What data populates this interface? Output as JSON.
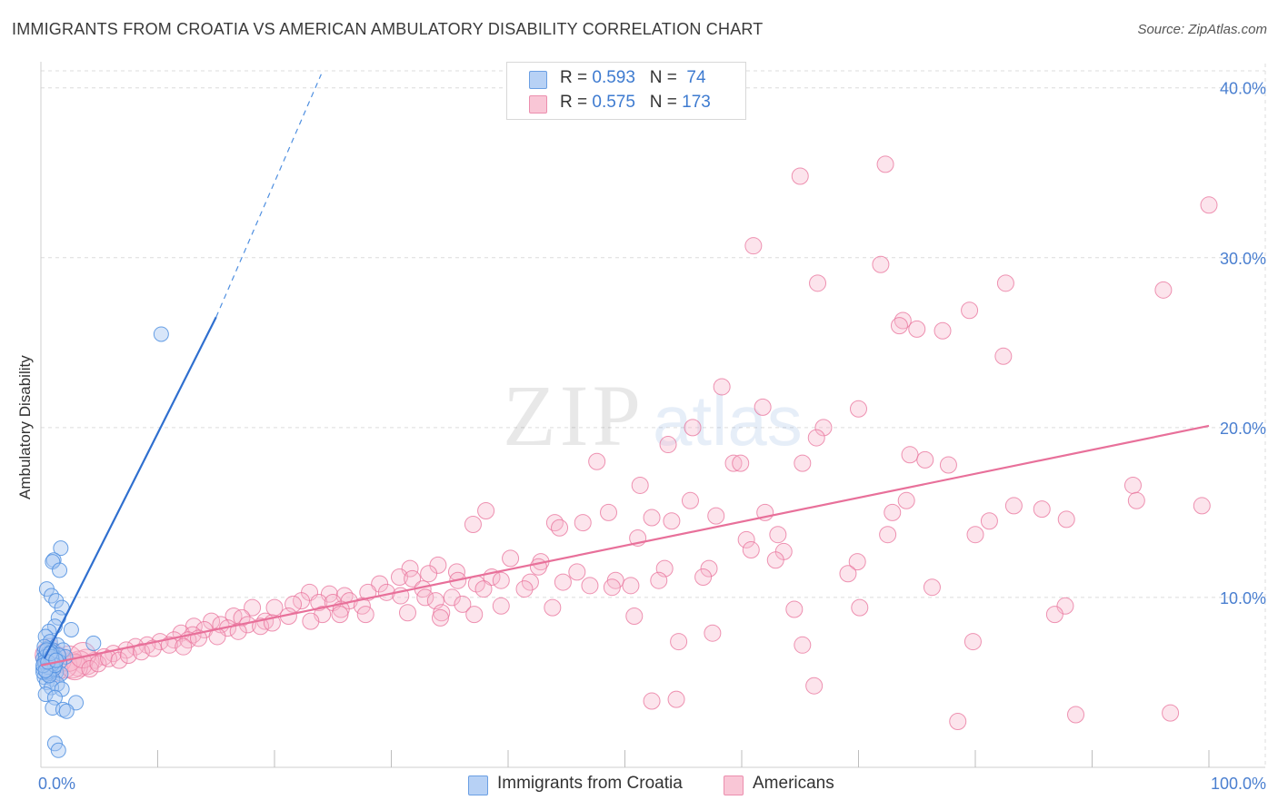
{
  "title": "IMMIGRANTS FROM CROATIA VS AMERICAN AMBULATORY DISABILITY CORRELATION CHART",
  "source": "Source: ZipAtlas.com",
  "watermark": {
    "zip": "ZIP",
    "atlas": "atlas"
  },
  "legend": {
    "series1": {
      "r_label": "R = ",
      "r_value": "0.593",
      "n_label": "N = ",
      "n_value": " 74"
    },
    "series2": {
      "r_label": "R = ",
      "r_value": "0.575",
      "n_label": "N = ",
      "n_value": "173"
    }
  },
  "bottom_legend": {
    "series1": "Immigrants from Croatia",
    "series2": "Americans"
  },
  "colors": {
    "blue": "#4f8fe0",
    "blue_fill": "#a9c8f2",
    "pink": "#e8709a",
    "pink_fill": "#f7b8cc",
    "tick": "#4a7fd0",
    "grid": "#dddddd"
  },
  "chart_data": {
    "type": "scatter",
    "title": "IMMIGRANTS FROM CROATIA VS AMERICAN AMBULATORY DISABILITY CORRELATION CHART",
    "xlabel": "",
    "ylabel": "Ambulatory Disability",
    "xlim": [
      0,
      100
    ],
    "ylim": [
      0,
      41
    ],
    "x_tick_labels": [
      "0.0%",
      "100.0%"
    ],
    "y_ticks": [
      10,
      20,
      30,
      40
    ],
    "y_tick_labels": [
      "10.0%",
      "20.0%",
      "30.0%",
      "40.0%"
    ],
    "grid": true,
    "legend_position": "top-center",
    "series": [
      {
        "name": "Immigrants from Croatia",
        "color": "#4f8fe0",
        "R": 0.593,
        "N": 74,
        "trend": {
          "x": [
            0.3,
            15
          ],
          "y": [
            6.4,
            26.5
          ],
          "dashed_to": [
            24.0,
            40.8
          ]
        },
        "points": [
          [
            10.3,
            25.5
          ],
          [
            1.7,
            12.9
          ],
          [
            1.1,
            12.2
          ],
          [
            1.0,
            12.1
          ],
          [
            1.6,
            11.6
          ],
          [
            0.5,
            10.5
          ],
          [
            0.9,
            10.1
          ],
          [
            1.3,
            9.8
          ],
          [
            1.8,
            9.4
          ],
          [
            1.5,
            8.8
          ],
          [
            1.2,
            8.3
          ],
          [
            0.7,
            8.0
          ],
          [
            2.6,
            8.1
          ],
          [
            0.4,
            7.7
          ],
          [
            0.8,
            7.4
          ],
          [
            1.4,
            7.2
          ],
          [
            4.5,
            7.3
          ],
          [
            0.6,
            7.0
          ],
          [
            1.0,
            6.9
          ],
          [
            1.9,
            6.9
          ],
          [
            0.3,
            6.8
          ],
          [
            0.7,
            6.6
          ],
          [
            1.2,
            6.5
          ],
          [
            2.1,
            6.5
          ],
          [
            0.5,
            6.3
          ],
          [
            0.9,
            6.2
          ],
          [
            1.6,
            6.2
          ],
          [
            0.4,
            6.0
          ],
          [
            1.1,
            5.9
          ],
          [
            0.2,
            5.8
          ],
          [
            0.8,
            5.7
          ],
          [
            1.3,
            5.6
          ],
          [
            0.6,
            5.5
          ],
          [
            1.7,
            5.5
          ],
          [
            0.3,
            5.3
          ],
          [
            1.0,
            5.2
          ],
          [
            0.5,
            5.0
          ],
          [
            1.4,
            4.9
          ],
          [
            0.9,
            4.7
          ],
          [
            1.8,
            4.6
          ],
          [
            0.4,
            4.3
          ],
          [
            1.2,
            4.1
          ],
          [
            3.0,
            3.8
          ],
          [
            1.0,
            3.5
          ],
          [
            1.9,
            3.4
          ],
          [
            2.2,
            3.3
          ],
          [
            1.2,
            1.4
          ],
          [
            1.5,
            1.0
          ],
          [
            0.2,
            6.4
          ],
          [
            0.4,
            6.1
          ],
          [
            0.6,
            6.7
          ],
          [
            0.8,
            5.9
          ],
          [
            1.0,
            6.3
          ],
          [
            0.3,
            7.1
          ],
          [
            0.5,
            5.6
          ],
          [
            0.7,
            6.0
          ],
          [
            0.9,
            6.8
          ],
          [
            1.1,
            5.8
          ],
          [
            0.2,
            5.6
          ],
          [
            0.4,
            6.5
          ],
          [
            0.6,
            5.9
          ],
          [
            0.8,
            6.4
          ],
          [
            1.0,
            6.1
          ],
          [
            1.5,
            6.6
          ],
          [
            0.3,
            6.2
          ],
          [
            0.5,
            6.9
          ],
          [
            0.7,
            5.4
          ],
          [
            0.9,
            6.5
          ],
          [
            1.2,
            6.0
          ],
          [
            0.2,
            6.0
          ],
          [
            0.4,
            5.7
          ],
          [
            0.6,
            6.2
          ],
          [
            0.8,
            6.7
          ],
          [
            1.3,
            6.3
          ]
        ]
      },
      {
        "name": "Americans",
        "color": "#e8709a",
        "R": 0.575,
        "N": 173,
        "trend": {
          "x": [
            0,
            100
          ],
          "y": [
            6.0,
            20.1
          ]
        },
        "points": [
          [
            65.0,
            34.8
          ],
          [
            72.3,
            35.5
          ],
          [
            100.0,
            33.1
          ],
          [
            61.0,
            30.7
          ],
          [
            71.9,
            29.6
          ],
          [
            66.5,
            28.5
          ],
          [
            82.6,
            28.5
          ],
          [
            96.1,
            28.1
          ],
          [
            79.5,
            26.9
          ],
          [
            73.8,
            26.3
          ],
          [
            73.5,
            26.0
          ],
          [
            75.0,
            25.8
          ],
          [
            77.2,
            25.7
          ],
          [
            82.4,
            24.2
          ],
          [
            58.3,
            22.4
          ],
          [
            61.8,
            21.2
          ],
          [
            70.0,
            21.1
          ],
          [
            55.8,
            20.0
          ],
          [
            67.0,
            20.0
          ],
          [
            66.4,
            19.4
          ],
          [
            53.7,
            19.0
          ],
          [
            74.4,
            18.4
          ],
          [
            75.7,
            18.1
          ],
          [
            47.6,
            18.0
          ],
          [
            59.3,
            17.9
          ],
          [
            59.9,
            17.9
          ],
          [
            65.2,
            17.9
          ],
          [
            77.7,
            17.8
          ],
          [
            51.3,
            16.6
          ],
          [
            93.5,
            16.6
          ],
          [
            55.6,
            15.7
          ],
          [
            74.1,
            15.7
          ],
          [
            93.8,
            15.7
          ],
          [
            38.1,
            15.1
          ],
          [
            48.6,
            15.0
          ],
          [
            62.0,
            15.0
          ],
          [
            83.3,
            15.4
          ],
          [
            85.7,
            15.2
          ],
          [
            99.4,
            15.4
          ],
          [
            52.3,
            14.7
          ],
          [
            54.0,
            14.5
          ],
          [
            57.8,
            14.8
          ],
          [
            72.9,
            15.0
          ],
          [
            81.2,
            14.5
          ],
          [
            87.8,
            14.6
          ],
          [
            37.0,
            14.3
          ],
          [
            44.0,
            14.4
          ],
          [
            46.4,
            14.4
          ],
          [
            44.4,
            14.1
          ],
          [
            63.1,
            13.7
          ],
          [
            80.0,
            13.7
          ],
          [
            72.5,
            13.7
          ],
          [
            51.1,
            13.5
          ],
          [
            60.4,
            13.4
          ],
          [
            60.8,
            12.8
          ],
          [
            63.6,
            12.7
          ],
          [
            40.2,
            12.3
          ],
          [
            42.8,
            12.1
          ],
          [
            62.9,
            12.2
          ],
          [
            69.9,
            12.1
          ],
          [
            34.0,
            11.9
          ],
          [
            31.6,
            11.7
          ],
          [
            33.2,
            11.4
          ],
          [
            35.6,
            11.5
          ],
          [
            38.6,
            11.2
          ],
          [
            42.6,
            11.8
          ],
          [
            45.9,
            11.5
          ],
          [
            53.4,
            11.7
          ],
          [
            57.2,
            11.7
          ],
          [
            69.1,
            11.4
          ],
          [
            56.7,
            11.2
          ],
          [
            30.7,
            11.2
          ],
          [
            31.8,
            11.1
          ],
          [
            35.7,
            11.0
          ],
          [
            37.3,
            10.8
          ],
          [
            39.4,
            11.0
          ],
          [
            41.9,
            10.9
          ],
          [
            44.7,
            10.9
          ],
          [
            49.2,
            11.0
          ],
          [
            52.9,
            11.0
          ],
          [
            76.3,
            10.6
          ],
          [
            29.0,
            10.8
          ],
          [
            32.7,
            10.5
          ],
          [
            37.9,
            10.5
          ],
          [
            41.4,
            10.5
          ],
          [
            47.0,
            10.7
          ],
          [
            48.9,
            10.6
          ],
          [
            50.5,
            10.7
          ],
          [
            23.0,
            10.3
          ],
          [
            24.7,
            10.2
          ],
          [
            26.0,
            10.1
          ],
          [
            28.0,
            10.3
          ],
          [
            29.6,
            10.3
          ],
          [
            30.8,
            10.1
          ],
          [
            32.9,
            10.0
          ],
          [
            35.2,
            10.0
          ],
          [
            22.3,
            9.8
          ],
          [
            23.8,
            9.7
          ],
          [
            26.4,
            9.8
          ],
          [
            27.5,
            9.5
          ],
          [
            33.8,
            9.8
          ],
          [
            36.1,
            9.6
          ],
          [
            39.4,
            9.5
          ],
          [
            18.1,
            9.4
          ],
          [
            20.0,
            9.4
          ],
          [
            21.6,
            9.6
          ],
          [
            25.0,
            9.7
          ],
          [
            25.7,
            9.3
          ],
          [
            24.1,
            9.0
          ],
          [
            27.8,
            9.0
          ],
          [
            31.4,
            9.1
          ],
          [
            34.3,
            9.1
          ],
          [
            43.8,
            9.4
          ],
          [
            64.5,
            9.3
          ],
          [
            70.1,
            9.4
          ],
          [
            87.7,
            9.5
          ],
          [
            86.8,
            9.0
          ],
          [
            16.5,
            8.9
          ],
          [
            17.2,
            8.8
          ],
          [
            19.2,
            8.6
          ],
          [
            21.2,
            8.9
          ],
          [
            14.6,
            8.6
          ],
          [
            15.4,
            8.4
          ],
          [
            16.0,
            8.2
          ],
          [
            17.7,
            8.4
          ],
          [
            18.8,
            8.3
          ],
          [
            19.8,
            8.5
          ],
          [
            23.1,
            8.6
          ],
          [
            25.6,
            9.0
          ],
          [
            34.2,
            8.8
          ],
          [
            37.1,
            9.0
          ],
          [
            50.8,
            8.9
          ],
          [
            13.1,
            8.3
          ],
          [
            14.0,
            8.1
          ],
          [
            12.0,
            7.9
          ],
          [
            13.0,
            7.8
          ],
          [
            11.4,
            7.5
          ],
          [
            12.6,
            7.5
          ],
          [
            10.2,
            7.4
          ],
          [
            9.1,
            7.2
          ],
          [
            8.1,
            7.1
          ],
          [
            7.3,
            6.9
          ],
          [
            6.2,
            6.7
          ],
          [
            5.4,
            6.5
          ],
          [
            4.6,
            6.3
          ],
          [
            3.9,
            6.2
          ],
          [
            3.3,
            6.1
          ],
          [
            2.7,
            6.0
          ],
          [
            2.0,
            6.0
          ],
          [
            1.5,
            6.3
          ],
          [
            1.0,
            6.5
          ],
          [
            0.6,
            6.6
          ],
          [
            0.8,
            7.1
          ],
          [
            1.2,
            5.8
          ],
          [
            2.4,
            6.4
          ],
          [
            2.9,
            5.9
          ],
          [
            3.6,
            6.6
          ],
          [
            4.2,
            5.8
          ],
          [
            4.9,
            6.1
          ],
          [
            5.8,
            6.4
          ],
          [
            6.7,
            6.3
          ],
          [
            7.5,
            6.6
          ],
          [
            8.6,
            6.8
          ],
          [
            9.6,
            7.0
          ],
          [
            11.0,
            7.2
          ],
          [
            12.2,
            7.1
          ],
          [
            13.5,
            7.6
          ],
          [
            15.1,
            7.7
          ],
          [
            16.9,
            8.0
          ],
          [
            54.6,
            7.4
          ],
          [
            57.5,
            7.9
          ],
          [
            65.2,
            7.2
          ],
          [
            79.8,
            7.4
          ],
          [
            66.2,
            4.8
          ],
          [
            52.3,
            3.9
          ],
          [
            54.4,
            4.0
          ],
          [
            78.5,
            2.7
          ],
          [
            88.6,
            3.1
          ],
          [
            96.7,
            3.2
          ]
        ]
      }
    ]
  }
}
